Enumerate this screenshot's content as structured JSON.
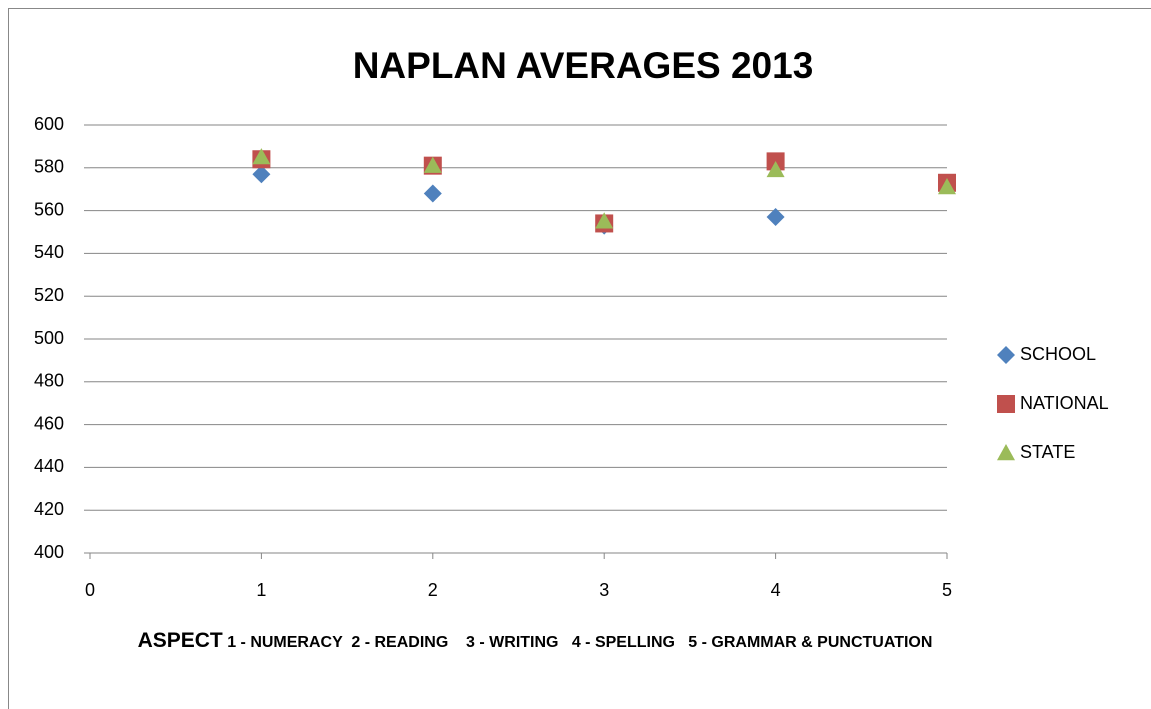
{
  "chart_data": {
    "type": "scatter",
    "title": "NAPLAN AVERAGES 2013",
    "x_label": "ASPECT",
    "x_label_detail": "1 - NUMERACY  2 - READING    3 - WRITING   4 - SPELLING   5 - GRAMMAR & PUNCTUATION",
    "x": [
      1,
      2,
      3,
      4,
      5
    ],
    "series": [
      {
        "name": "SCHOOL",
        "color": "#4f81bd",
        "marker": "diamond",
        "values": [
          577,
          568,
          553,
          557,
          null
        ]
      },
      {
        "name": "NATIONAL",
        "color": "#c0504d",
        "marker": "square",
        "values": [
          584,
          581,
          554,
          583,
          573
        ]
      },
      {
        "name": "STATE",
        "color": "#9bbb59",
        "marker": "triangle",
        "values": [
          585,
          581,
          555,
          579,
          571
        ]
      }
    ],
    "xlim": [
      0,
      5
    ],
    "xticks": [
      0,
      1,
      2,
      3,
      4,
      5
    ],
    "ylim": [
      400,
      600
    ],
    "yticks": [
      400,
      420,
      440,
      460,
      480,
      500,
      520,
      540,
      560,
      580,
      600
    ],
    "grid": true,
    "legend": "right"
  }
}
